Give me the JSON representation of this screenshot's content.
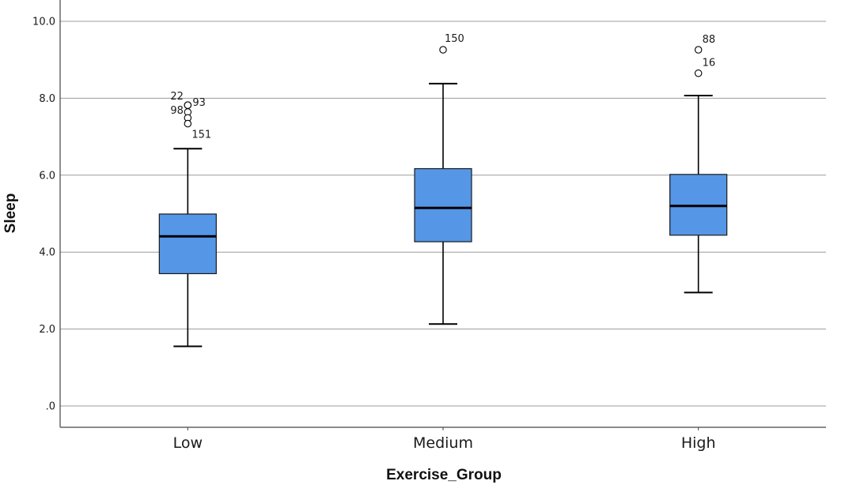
{
  "chart_data": {
    "type": "boxplot",
    "title": "",
    "xlabel": "Exercise_Group",
    "ylabel": "Sleep",
    "ylim": [
      -0.55,
      10.55
    ],
    "yticks": [
      0,
      2,
      4,
      6,
      8,
      10
    ],
    "ytick_labels": [
      ".0",
      "2.0",
      "4.0",
      "6.0",
      "8.0",
      "10.0"
    ],
    "grid": "horizontal",
    "categories": [
      "Low",
      "Medium",
      "High"
    ],
    "box_color": "#5596e6",
    "boxes": [
      {
        "category": "Low",
        "whisker_low": 1.55,
        "q1": 3.44,
        "median": 4.41,
        "q3": 4.99,
        "whisker_high": 6.69,
        "outliers": [
          {
            "label": "22",
            "value": 7.82
          },
          {
            "label": "93",
            "value": 7.82
          },
          {
            "label": "98",
            "value": 7.64
          },
          {
            "label": "",
            "value": 7.49
          },
          {
            "label": "151",
            "value": 7.34
          }
        ]
      },
      {
        "category": "Medium",
        "whisker_low": 2.13,
        "q1": 4.27,
        "median": 5.15,
        "q3": 6.17,
        "whisker_high": 8.38,
        "outliers": [
          {
            "label": "150",
            "value": 9.26
          }
        ]
      },
      {
        "category": "High",
        "whisker_low": 2.95,
        "q1": 4.44,
        "median": 5.2,
        "q3": 6.02,
        "whisker_high": 8.07,
        "outliers": [
          {
            "label": "88",
            "value": 9.26
          },
          {
            "label": "16",
            "value": 8.65
          }
        ]
      }
    ]
  }
}
